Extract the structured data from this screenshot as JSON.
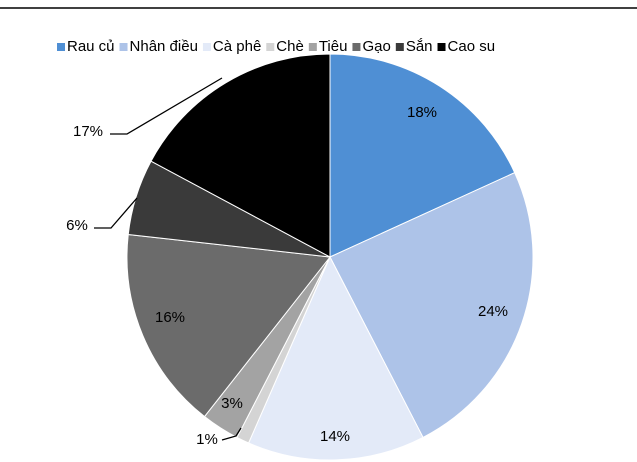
{
  "chart_data": {
    "type": "pie",
    "categories": [
      "Rau củ",
      "Nhân điều",
      "Cà phê",
      "Chè",
      "Tiêu",
      "Gạo",
      "Sắn",
      "Cao su"
    ],
    "values": [
      18,
      24,
      14,
      1,
      3,
      16,
      6,
      17
    ],
    "value_labels": [
      "18%",
      "24%",
      "14%",
      "1%",
      "3%",
      "16%",
      "6%",
      "17%"
    ],
    "colors": [
      "#4f8fd4",
      "#adc3e8",
      "#e3eaf8",
      "#d4d4d4",
      "#a3a3a3",
      "#6b6b6b",
      "#3a3a3a",
      "#000000"
    ],
    "legend": "top"
  }
}
